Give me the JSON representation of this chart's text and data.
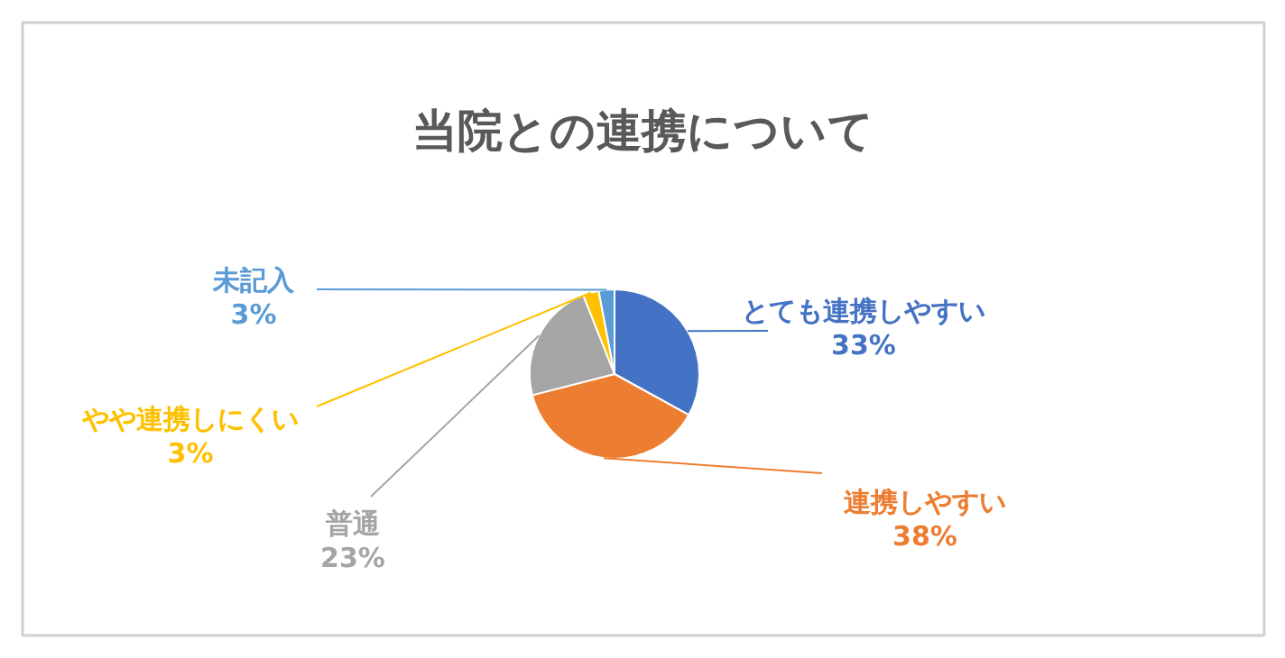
{
  "chart_data": {
    "type": "pie",
    "title": "当院との連携について",
    "categories": [
      "とても連携しやすい",
      "連携しやすい",
      "普通",
      "やや連携しにくい",
      "未記入"
    ],
    "values": [
      33,
      38,
      23,
      3,
      3
    ],
    "value_labels": [
      "33%",
      "38%",
      "23%",
      "3%",
      "3%"
    ],
    "colors": [
      "#4472c4",
      "#ed7d31",
      "#a5a5a5",
      "#ffc000",
      "#5b9bd5"
    ]
  }
}
